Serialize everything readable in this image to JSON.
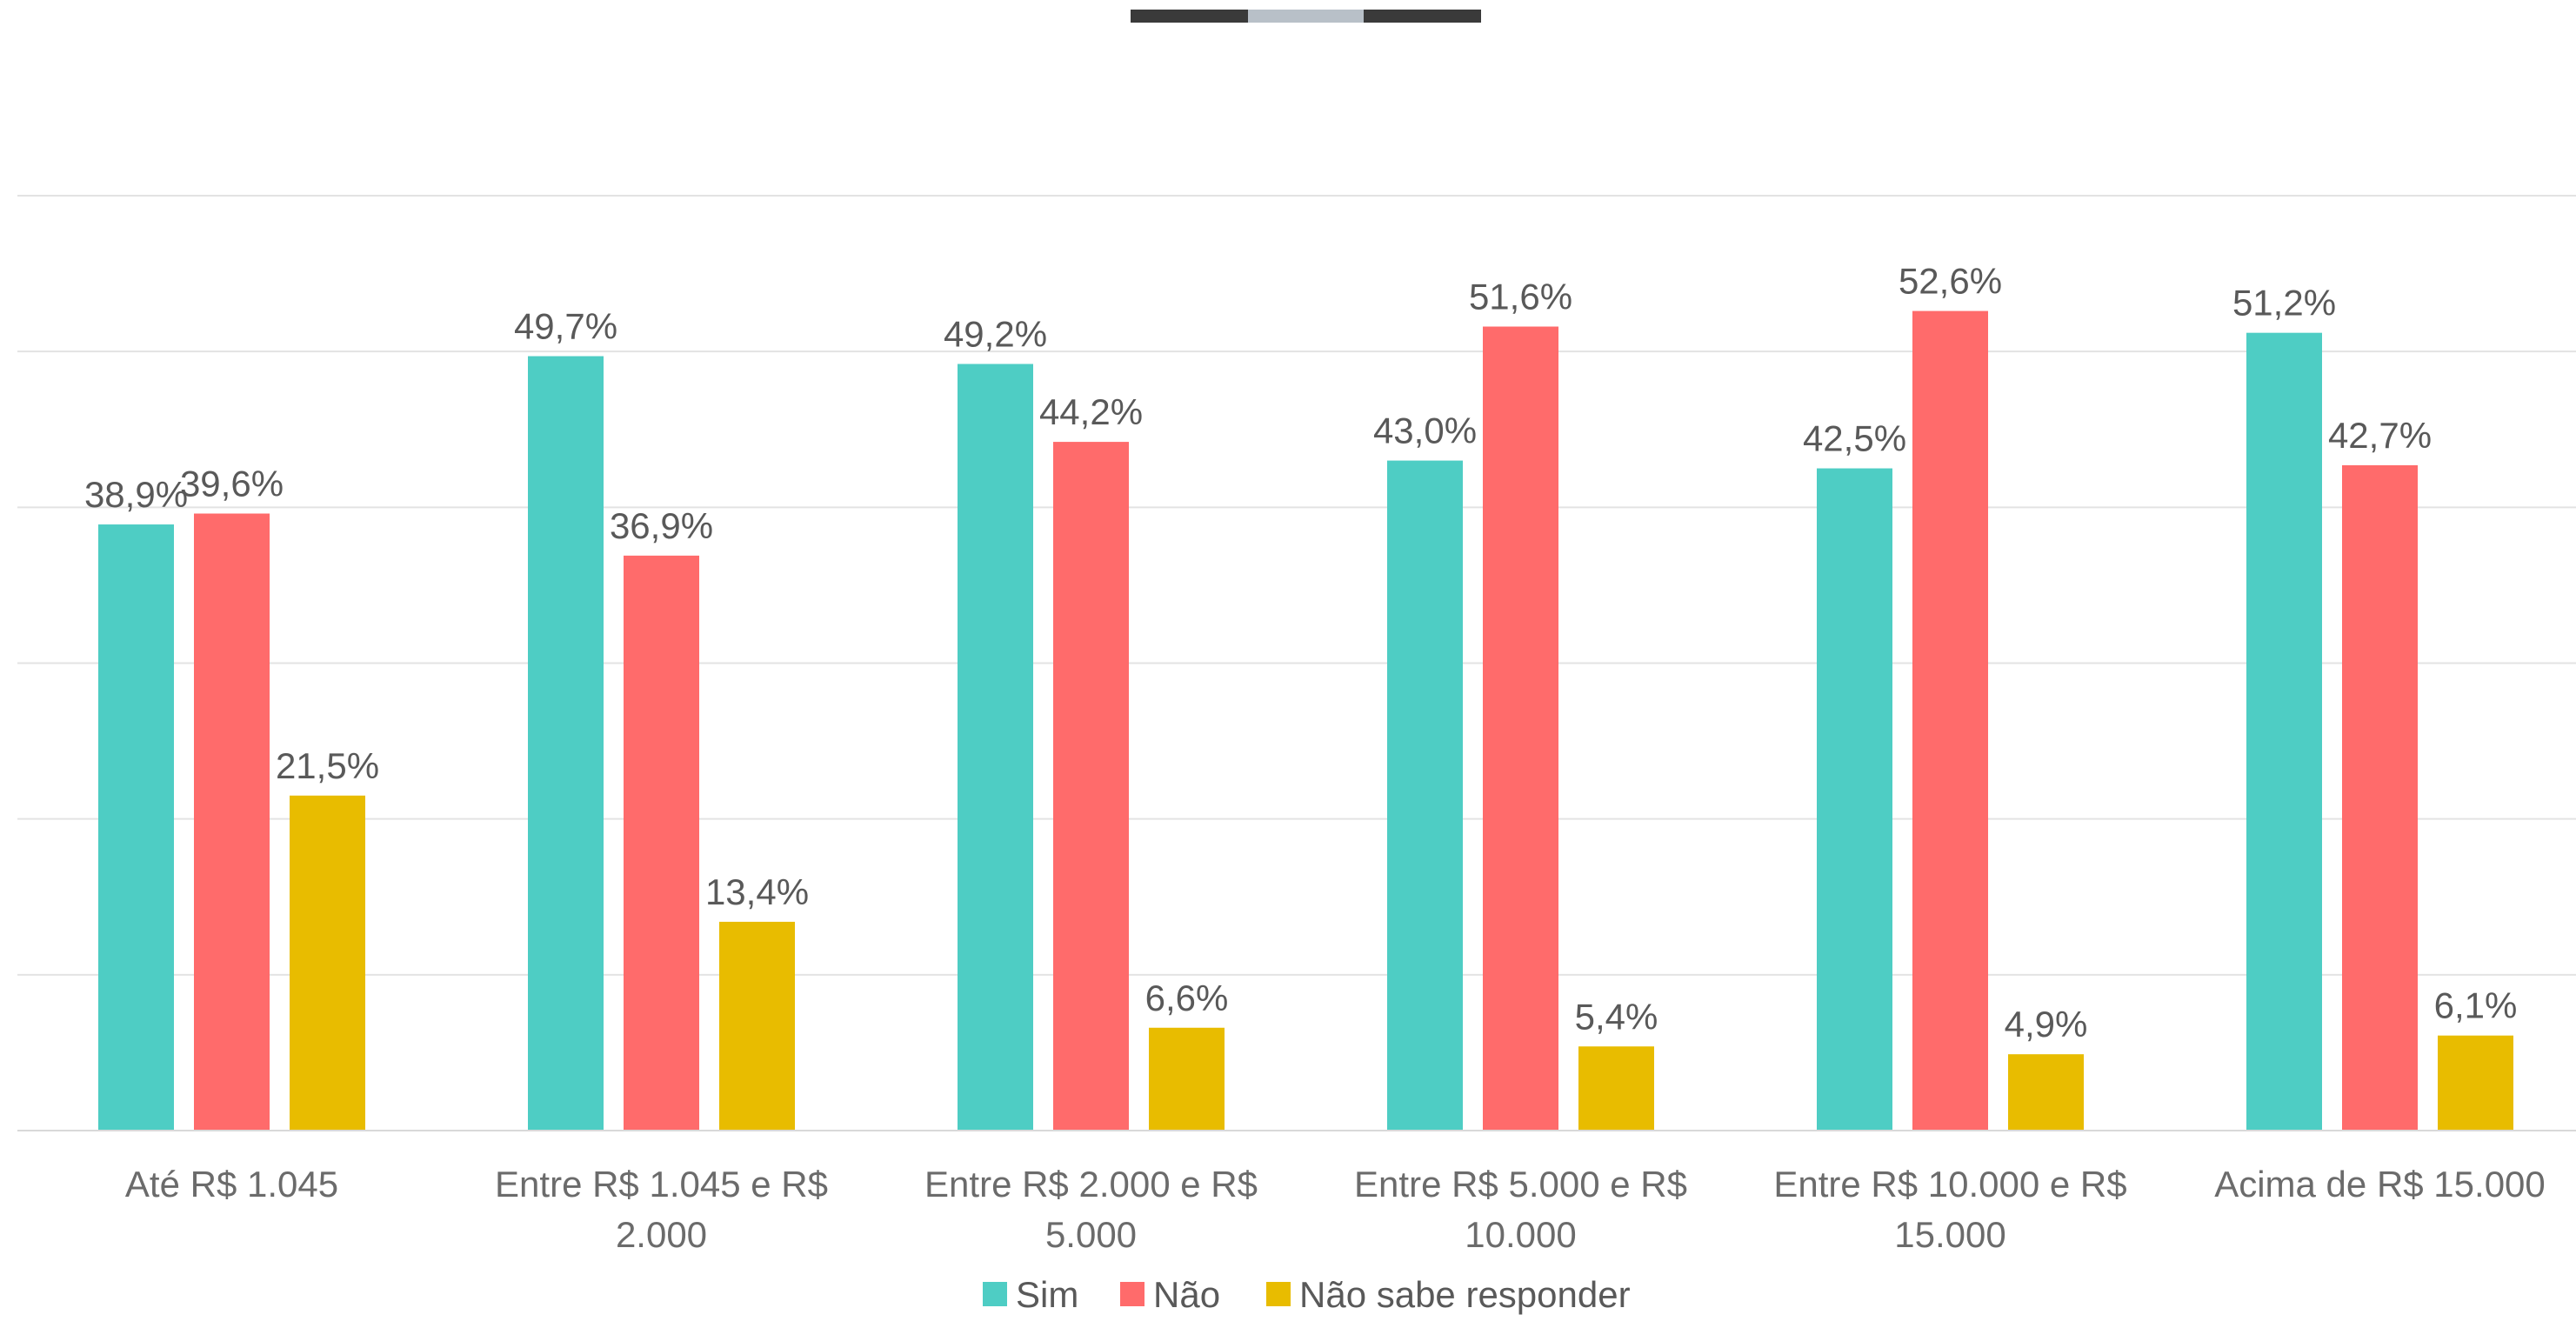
{
  "header_indicator": {
    "segments": [
      "dark",
      "light",
      "dark"
    ],
    "colors": {
      "dark": "#3a3a3a",
      "light": "#b8c0c8"
    }
  },
  "chart_data": {
    "type": "bar",
    "title": "",
    "xlabel": "",
    "ylabel": "",
    "ylim": [
      0,
      60
    ],
    "grid": true,
    "legend_position": "bottom",
    "categories": [
      [
        "Até R$ 1.045"
      ],
      [
        "Entre R$ 1.045 e R$",
        "2.000"
      ],
      [
        "Entre R$ 2.000 e R$",
        "5.000"
      ],
      [
        "Entre R$ 5.000 e R$",
        "10.000"
      ],
      [
        "Entre R$ 10.000 e R$",
        "15.000"
      ],
      [
        "Acima de R$ 15.000"
      ]
    ],
    "series": [
      {
        "name": "Sim",
        "color": "#4ecdc4",
        "values": [
          38.9,
          49.7,
          49.2,
          43.0,
          42.5,
          51.2
        ],
        "labels": [
          "38,9%",
          "49,7%",
          "49,2%",
          "43,0%",
          "42,5%",
          "51,2%"
        ]
      },
      {
        "name": "Não",
        "color": "#ff6b6b",
        "values": [
          39.6,
          36.9,
          44.2,
          51.6,
          52.6,
          42.7
        ],
        "labels": [
          "39,6%",
          "36,9%",
          "44,2%",
          "51,6%",
          "52,6%",
          "42,7%"
        ]
      },
      {
        "name": "Não sabe responder",
        "color": "#e8bc00",
        "values": [
          21.5,
          13.4,
          6.6,
          5.4,
          4.9,
          6.1
        ],
        "labels": [
          "21,5%",
          "13,4%",
          "6,6%",
          "5,4%",
          "4,9%",
          "6,1%"
        ]
      }
    ]
  }
}
